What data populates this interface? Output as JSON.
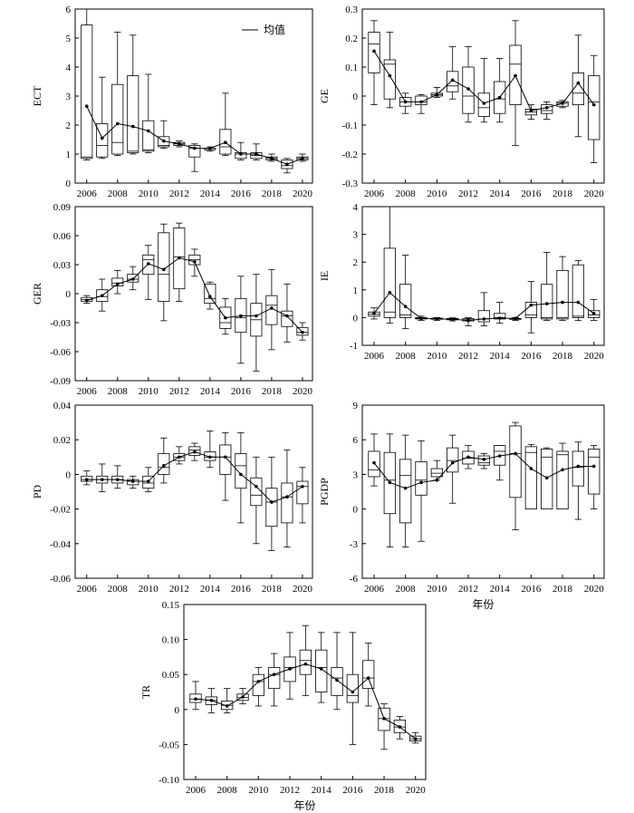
{
  "legend_label": "均值",
  "xlabel": "年份",
  "chart_data": [
    {
      "type": "boxplot",
      "ylabel": "ECT",
      "ylim": [
        0,
        6
      ],
      "yticks": [
        "0",
        "1",
        "2",
        "3",
        "4",
        "5",
        "6"
      ],
      "ytick_values": [
        0,
        1,
        2,
        3,
        4,
        5,
        6
      ],
      "xticks": [
        "2006",
        "2008",
        "2010",
        "2012",
        "2014",
        "2016",
        "2018",
        "2020"
      ],
      "xlabel": "",
      "legend": "top-right",
      "years": [
        2006,
        2007,
        2008,
        2009,
        2010,
        2011,
        2012,
        2013,
        2014,
        2015,
        2016,
        2017,
        2018,
        2019,
        2020
      ],
      "boxes": [
        [
          0.8,
          0.85,
          0.9,
          5.45,
          6.0
        ],
        [
          0.85,
          0.9,
          1.3,
          2.05,
          3.65
        ],
        [
          0.95,
          1.0,
          1.4,
          3.4,
          5.2
        ],
        [
          1.0,
          1.05,
          1.1,
          3.7,
          5.1
        ],
        [
          1.05,
          1.1,
          1.15,
          2.15,
          3.75
        ],
        [
          1.2,
          1.25,
          1.3,
          1.6,
          2.15
        ],
        [
          1.25,
          1.3,
          1.35,
          1.4,
          1.45
        ],
        [
          0.4,
          0.9,
          1.2,
          1.3,
          1.35
        ],
        [
          1.1,
          1.15,
          1.15,
          1.2,
          1.25
        ],
        [
          0.95,
          1.0,
          1.25,
          1.85,
          3.1
        ],
        [
          0.8,
          0.85,
          1.0,
          1.05,
          1.4
        ],
        [
          0.8,
          0.85,
          0.95,
          1.05,
          1.35
        ],
        [
          0.75,
          0.8,
          0.85,
          0.9,
          1.0
        ],
        [
          0.35,
          0.5,
          0.6,
          0.8,
          0.85
        ],
        [
          0.75,
          0.8,
          0.85,
          0.9,
          1.0
        ]
      ],
      "mean": [
        2.65,
        1.55,
        2.05,
        1.95,
        1.8,
        1.45,
        1.35,
        1.2,
        1.2,
        1.4,
        1.0,
        1.0,
        0.85,
        0.65,
        0.85
      ]
    },
    {
      "type": "boxplot",
      "ylabel": "GE",
      "ylim": [
        -0.3,
        0.3
      ],
      "yticks": [
        "-0.3",
        "-0.2",
        "-0.1",
        "0",
        "0.1",
        "0.2",
        "0.3"
      ],
      "ytick_values": [
        -0.3,
        -0.2,
        -0.1,
        0,
        0.1,
        0.2,
        0.3
      ],
      "xticks": [
        "2006",
        "2008",
        "2010",
        "2012",
        "2014",
        "2016",
        "2018",
        "2020"
      ],
      "xlabel": "",
      "years": [
        2006,
        2007,
        2008,
        2009,
        2010,
        2011,
        2012,
        2013,
        2014,
        2015,
        2016,
        2017,
        2018,
        2019,
        2020
      ],
      "boxes": [
        [
          -0.03,
          0.08,
          0.18,
          0.22,
          0.26
        ],
        [
          -0.04,
          -0.01,
          0.11,
          0.125,
          0.22
        ],
        [
          -0.06,
          -0.035,
          -0.02,
          -0.005,
          0.01
        ],
        [
          -0.06,
          -0.03,
          -0.02,
          0.0,
          0.005
        ],
        [
          -0.005,
          0.0,
          0.005,
          0.01,
          0.03
        ],
        [
          -0.01,
          0.015,
          0.035,
          0.085,
          0.17
        ],
        [
          -0.09,
          -0.06,
          0.0,
          0.1,
          0.17
        ],
        [
          -0.09,
          -0.07,
          -0.04,
          0.01,
          0.13
        ],
        [
          -0.09,
          -0.06,
          -0.01,
          0.05,
          0.13
        ],
        [
          -0.17,
          -0.03,
          0.11,
          0.175,
          0.26
        ],
        [
          -0.08,
          -0.065,
          -0.055,
          -0.045,
          -0.03
        ],
        [
          -0.08,
          -0.06,
          -0.05,
          -0.03,
          -0.02
        ],
        [
          -0.04,
          -0.035,
          -0.025,
          -0.02,
          -0.015
        ],
        [
          -0.14,
          -0.03,
          0.01,
          0.08,
          0.21
        ],
        [
          -0.23,
          -0.15,
          -0.02,
          0.07,
          0.14
        ]
      ],
      "mean": [
        0.155,
        0.07,
        -0.02,
        -0.02,
        0.005,
        0.055,
        0.025,
        -0.025,
        -0.005,
        0.07,
        -0.05,
        -0.04,
        -0.025,
        0.045,
        -0.03
      ]
    },
    {
      "type": "boxplot",
      "ylabel": "GER",
      "ylim": [
        -0.09,
        0.09
      ],
      "yticks": [
        "-0.09",
        "-0.06",
        "-0.03",
        "0",
        "0.03",
        "0.06",
        "0.09"
      ],
      "ytick_values": [
        -0.09,
        -0.06,
        -0.03,
        0,
        0.03,
        0.06,
        0.09
      ],
      "xticks": [
        "2006",
        "2008",
        "2010",
        "2012",
        "2014",
        "2016",
        "2018",
        "2020"
      ],
      "xlabel": "",
      "years": [
        2006,
        2007,
        2008,
        2009,
        2010,
        2011,
        2012,
        2013,
        2014,
        2015,
        2016,
        2017,
        2018,
        2019,
        2020
      ],
      "boxes": [
        [
          -0.01,
          -0.008,
          -0.006,
          -0.004,
          -0.002
        ],
        [
          -0.018,
          -0.008,
          -0.003,
          0.004,
          0.015
        ],
        [
          0.0,
          0.008,
          0.011,
          0.016,
          0.024
        ],
        [
          0.004,
          0.012,
          0.015,
          0.02,
          0.028
        ],
        [
          -0.006,
          0.02,
          0.035,
          0.04,
          0.05
        ],
        [
          -0.028,
          -0.008,
          0.02,
          0.063,
          0.072
        ],
        [
          -0.008,
          0.005,
          0.038,
          0.068,
          0.073
        ],
        [
          0.018,
          0.03,
          0.035,
          0.04,
          0.046
        ],
        [
          -0.016,
          -0.01,
          -0.005,
          0.01,
          0.012
        ],
        [
          -0.042,
          -0.036,
          -0.03,
          -0.014,
          -0.005
        ],
        [
          -0.072,
          -0.04,
          -0.025,
          -0.005,
          0.018
        ],
        [
          -0.08,
          -0.044,
          -0.027,
          -0.01,
          0.02
        ],
        [
          -0.058,
          -0.032,
          -0.012,
          -0.002,
          0.025
        ],
        [
          -0.05,
          -0.034,
          -0.023,
          -0.018,
          0.01
        ],
        [
          -0.048,
          -0.043,
          -0.04,
          -0.035,
          -0.03
        ]
      ],
      "mean": [
        -0.007,
        -0.002,
        0.01,
        0.015,
        0.031,
        0.025,
        0.037,
        0.033,
        -0.003,
        -0.025,
        -0.023,
        -0.023,
        -0.015,
        -0.023,
        -0.04
      ]
    },
    {
      "type": "boxplot",
      "ylabel": "IE",
      "ylim": [
        -1,
        4
      ],
      "yticks": [
        "-1",
        "0",
        "1",
        "2",
        "3",
        "4"
      ],
      "ytick_values": [
        -1,
        0,
        1,
        2,
        3,
        4
      ],
      "xticks": [
        "2006",
        "2008",
        "2010",
        "2012",
        "2014",
        "2016",
        "2018",
        "2020"
      ],
      "xlabel": "",
      "years": [
        2006,
        2007,
        2008,
        2009,
        2010,
        2011,
        2012,
        2013,
        2014,
        2015,
        2016,
        2017,
        2018,
        2019,
        2020
      ],
      "boxes": [
        [
          -0.05,
          0.05,
          0.12,
          0.2,
          0.35
        ],
        [
          -0.2,
          0.0,
          0.2,
          2.5,
          4.0
        ],
        [
          -0.4,
          0.0,
          0.1,
          1.2,
          2.25
        ],
        [
          -0.1,
          -0.05,
          -0.02,
          0.0,
          0.05
        ],
        [
          -0.1,
          -0.06,
          -0.04,
          -0.02,
          0.0
        ],
        [
          -0.12,
          -0.08,
          -0.05,
          -0.03,
          -0.01
        ],
        [
          -0.3,
          -0.12,
          -0.08,
          -0.04,
          0.0
        ],
        [
          -0.3,
          -0.15,
          -0.05,
          0.25,
          0.9
        ],
        [
          -0.2,
          -0.05,
          0.0,
          0.15,
          0.55
        ],
        [
          -0.1,
          -0.06,
          -0.05,
          -0.03,
          0.0
        ],
        [
          -0.55,
          0.0,
          0.1,
          0.55,
          1.3
        ],
        [
          -0.1,
          -0.05,
          0.0,
          1.2,
          2.35
        ],
        [
          -0.1,
          -0.05,
          0.0,
          1.7,
          2.2
        ],
        [
          -0.1,
          0.0,
          0.05,
          1.9,
          2.05
        ],
        [
          -0.1,
          0.0,
          0.1,
          0.25,
          0.65
        ]
      ],
      "mean": [
        0.15,
        0.9,
        0.4,
        -0.03,
        -0.05,
        -0.06,
        -0.1,
        -0.05,
        -0.02,
        -0.03,
        0.45,
        0.5,
        0.55,
        0.55,
        0.15
      ]
    },
    {
      "type": "boxplot",
      "ylabel": "PD",
      "ylim": [
        -0.06,
        0.04
      ],
      "yticks": [
        "-0.06",
        "-0.04",
        "-0.02",
        "0",
        "0.02",
        "0.04"
      ],
      "ytick_values": [
        -0.06,
        -0.04,
        -0.02,
        0,
        0.02,
        0.04
      ],
      "xticks": [
        "2006",
        "2008",
        "2010",
        "2012",
        "2014",
        "2016",
        "2018",
        "2020"
      ],
      "xlabel": "",
      "years": [
        2006,
        2007,
        2008,
        2009,
        2010,
        2011,
        2012,
        2013,
        2014,
        2015,
        2016,
        2017,
        2018,
        2019,
        2020
      ],
      "boxes": [
        [
          -0.006,
          -0.004,
          -0.003,
          -0.001,
          0.002
        ],
        [
          -0.01,
          -0.005,
          -0.003,
          -0.001,
          0.006
        ],
        [
          -0.008,
          -0.005,
          -0.003,
          -0.001,
          0.005
        ],
        [
          -0.008,
          -0.006,
          -0.004,
          -0.003,
          -0.001
        ],
        [
          -0.01,
          -0.008,
          -0.005,
          -0.001,
          0.004
        ],
        [
          -0.005,
          0.0,
          0.004,
          0.012,
          0.021
        ],
        [
          0.006,
          0.008,
          0.01,
          0.012,
          0.016
        ],
        [
          0.008,
          0.011,
          0.014,
          0.016,
          0.018
        ],
        [
          0.004,
          0.008,
          0.01,
          0.013,
          0.025
        ],
        [
          -0.015,
          0.0,
          0.01,
          0.017,
          0.024
        ],
        [
          -0.028,
          -0.008,
          0.005,
          0.012,
          0.024
        ],
        [
          -0.04,
          -0.018,
          -0.012,
          -0.002,
          0.01
        ],
        [
          -0.044,
          -0.03,
          -0.016,
          -0.008,
          0.01
        ],
        [
          -0.042,
          -0.028,
          -0.013,
          -0.005,
          0.014
        ],
        [
          -0.028,
          -0.017,
          -0.007,
          -0.004,
          0.004
        ]
      ],
      "mean": [
        -0.003,
        -0.003,
        -0.003,
        -0.004,
        -0.004,
        0.005,
        0.01,
        0.013,
        0.01,
        0.01,
        0.0,
        -0.007,
        -0.016,
        -0.013,
        -0.007
      ]
    },
    {
      "type": "boxplot",
      "ylabel": "PGDP",
      "ylim": [
        -6,
        9
      ],
      "yticks": [
        "-6",
        "-3",
        "0",
        "3",
        "6",
        "9"
      ],
      "ytick_values": [
        -6,
        -3,
        0,
        3,
        6,
        9
      ],
      "xticks": [
        "2006",
        "2008",
        "2010",
        "2012",
        "2014",
        "2016",
        "2018",
        "2020"
      ],
      "xlabel": "年份",
      "years": [
        2006,
        2007,
        2008,
        2009,
        2010,
        2011,
        2012,
        2013,
        2014,
        2015,
        2016,
        2017,
        2018,
        2019,
        2020
      ],
      "boxes": [
        [
          2.0,
          2.8,
          3.4,
          5.0,
          6.5
        ],
        [
          -3.3,
          -0.4,
          2.5,
          4.9,
          6.5
        ],
        [
          -3.3,
          -1.2,
          2.9,
          4.3,
          6.4
        ],
        [
          -2.8,
          1.2,
          2.5,
          4.1,
          5.9
        ],
        [
          2.5,
          2.8,
          3.1,
          3.5,
          4.2
        ],
        [
          0.5,
          3.2,
          4.2,
          5.3,
          6.4
        ],
        [
          3.5,
          3.9,
          4.4,
          5.0,
          5.5
        ],
        [
          3.5,
          3.8,
          4.0,
          4.6,
          4.8
        ],
        [
          2.5,
          3.8,
          5.0,
          5.5,
          5.5
        ],
        [
          -1.8,
          1.0,
          4.8,
          7.2,
          7.5
        ],
        [
          0.0,
          0.0,
          4.9,
          5.4,
          5.6
        ],
        [
          0.0,
          0.0,
          4.5,
          5.2,
          5.3
        ],
        [
          0.0,
          0.0,
          4.7,
          5.0,
          5.7
        ],
        [
          -0.9,
          2.0,
          3.6,
          5.0,
          5.8
        ],
        [
          0.0,
          1.3,
          4.5,
          5.2,
          5.5
        ]
      ],
      "mean": [
        4.0,
        2.3,
        1.8,
        2.3,
        2.5,
        4.0,
        4.5,
        4.3,
        4.6,
        4.8,
        3.5,
        2.7,
        3.4,
        3.7,
        3.7
      ]
    },
    {
      "type": "boxplot",
      "ylabel": "TR",
      "ylim": [
        -0.1,
        0.15
      ],
      "yticks": [
        "-0.10",
        "-0.05",
        "0",
        "0.05",
        "0.10",
        "0.15"
      ],
      "ytick_values": [
        -0.1,
        -0.05,
        0,
        0.05,
        0.1,
        0.15
      ],
      "xticks": [
        "2006",
        "2008",
        "2010",
        "2012",
        "2014",
        "2016",
        "2018",
        "2020"
      ],
      "xlabel": "年份",
      "years": [
        2006,
        2007,
        2008,
        2009,
        2010,
        2011,
        2012,
        2013,
        2014,
        2015,
        2016,
        2017,
        2018,
        2019,
        2020
      ],
      "boxes": [
        [
          0.0,
          0.01,
          0.015,
          0.022,
          0.04
        ],
        [
          -0.005,
          0.007,
          0.013,
          0.018,
          0.03
        ],
        [
          -0.005,
          0.0,
          0.006,
          0.012,
          0.03
        ],
        [
          0.008,
          0.013,
          0.017,
          0.022,
          0.03
        ],
        [
          0.005,
          0.02,
          0.04,
          0.05,
          0.06
        ],
        [
          0.005,
          0.03,
          0.05,
          0.06,
          0.08
        ],
        [
          0.015,
          0.04,
          0.06,
          0.075,
          0.11
        ],
        [
          0.02,
          0.05,
          0.07,
          0.085,
          0.12
        ],
        [
          0.01,
          0.025,
          0.06,
          0.085,
          0.11
        ],
        [
          0.0,
          0.02,
          0.045,
          0.06,
          0.11
        ],
        [
          -0.05,
          0.01,
          0.02,
          0.05,
          0.11
        ],
        [
          0.005,
          0.03,
          0.045,
          0.07,
          0.095
        ],
        [
          -0.057,
          -0.03,
          -0.013,
          0.002,
          0.008
        ],
        [
          -0.042,
          -0.033,
          -0.025,
          -0.015,
          -0.01
        ],
        [
          -0.048,
          -0.045,
          -0.042,
          -0.038,
          -0.033
        ]
      ],
      "mean": [
        0.015,
        0.013,
        0.005,
        0.018,
        0.04,
        0.05,
        0.058,
        0.065,
        0.058,
        0.042,
        0.025,
        0.045,
        -0.013,
        -0.025,
        -0.042
      ]
    }
  ]
}
